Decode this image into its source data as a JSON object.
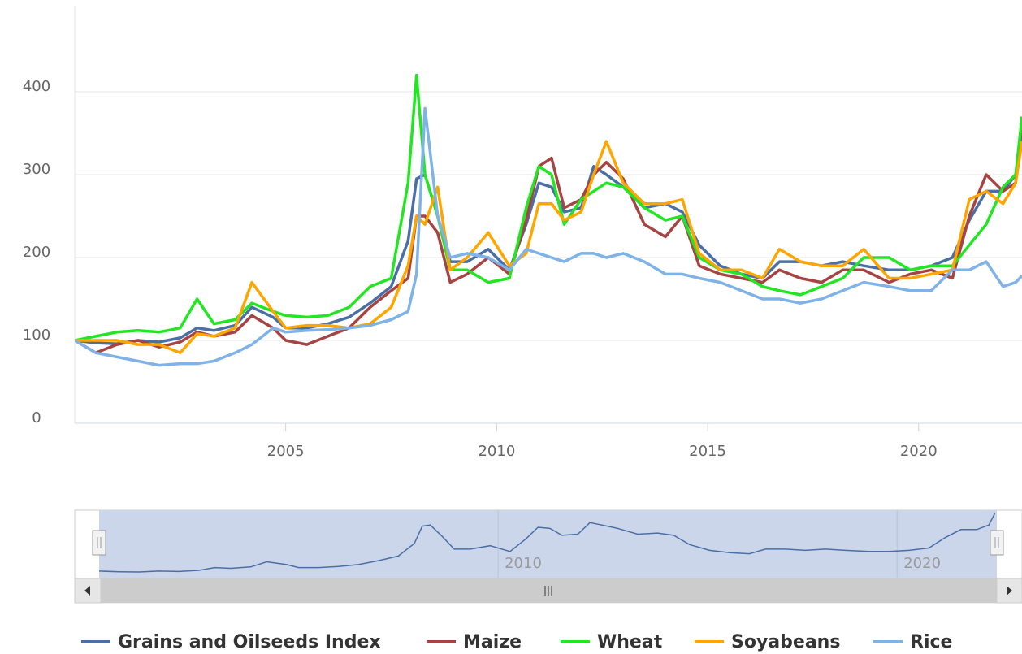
{
  "chart_data": {
    "type": "line",
    "x": [
      2000.0,
      2000.5,
      2001.0,
      2001.5,
      2002.0,
      2002.5,
      2002.9,
      2003.3,
      2003.8,
      2004.2,
      2004.7,
      2005.0,
      2005.5,
      2006.0,
      2006.5,
      2007.0,
      2007.5,
      2007.9,
      2008.1,
      2008.3,
      2008.6,
      2008.9,
      2009.3,
      2009.8,
      2010.3,
      2010.7,
      2011.0,
      2011.3,
      2011.6,
      2012.0,
      2012.3,
      2012.6,
      2013.0,
      2013.5,
      2014.0,
      2014.4,
      2014.8,
      2015.3,
      2015.8,
      2016.3,
      2016.7,
      2017.2,
      2017.7,
      2018.2,
      2018.7,
      2019.3,
      2019.8,
      2020.3,
      2020.8,
      2021.2,
      2021.6,
      2022.0,
      2022.3,
      2022.45
    ],
    "series": [
      {
        "name": "Grains and Oilseeds Index",
        "color": "#4a6fa5",
        "values": [
          100,
          97,
          96,
          100,
          98,
          103,
          115,
          112,
          118,
          140,
          128,
          115,
          115,
          120,
          128,
          145,
          165,
          220,
          295,
          300,
          250,
          195,
          195,
          210,
          185,
          240,
          290,
          285,
          255,
          260,
          310,
          300,
          285,
          260,
          265,
          255,
          215,
          190,
          180,
          175,
          195,
          195,
          190,
          195,
          190,
          185,
          185,
          190,
          200,
          245,
          280,
          280,
          300,
          350
        ]
      },
      {
        "name": "Maize",
        "color": "#a54442",
        "values": [
          100,
          85,
          95,
          100,
          92,
          98,
          110,
          105,
          110,
          130,
          115,
          100,
          95,
          105,
          115,
          140,
          160,
          175,
          250,
          250,
          230,
          170,
          180,
          200,
          180,
          245,
          310,
          320,
          260,
          270,
          300,
          315,
          295,
          240,
          225,
          250,
          190,
          180,
          175,
          170,
          185,
          175,
          170,
          185,
          185,
          170,
          180,
          185,
          175,
          250,
          300,
          280,
          290,
          370
        ]
      },
      {
        "name": "Wheat",
        "color": "#22e622",
        "values": [
          100,
          105,
          110,
          112,
          110,
          115,
          150,
          120,
          125,
          145,
          135,
          130,
          128,
          130,
          140,
          165,
          175,
          290,
          420,
          300,
          250,
          185,
          185,
          170,
          175,
          260,
          310,
          300,
          240,
          270,
          280,
          290,
          285,
          260,
          245,
          250,
          200,
          185,
          180,
          165,
          160,
          155,
          165,
          175,
          200,
          200,
          185,
          190,
          190,
          215,
          240,
          285,
          300,
          370
        ]
      },
      {
        "name": "Soyabeans",
        "color": "#ffa500",
        "values": [
          100,
          100,
          100,
          95,
          95,
          85,
          108,
          105,
          115,
          170,
          135,
          115,
          118,
          118,
          115,
          120,
          140,
          190,
          250,
          240,
          285,
          185,
          200,
          230,
          190,
          205,
          265,
          265,
          245,
          255,
          300,
          340,
          290,
          265,
          265,
          270,
          205,
          185,
          185,
          175,
          210,
          195,
          190,
          190,
          210,
          175,
          175,
          180,
          185,
          270,
          280,
          265,
          290,
          340
        ]
      },
      {
        "name": "Rice",
        "color": "#7fb2e6",
        "values": [
          100,
          85,
          80,
          75,
          70,
          72,
          72,
          75,
          85,
          95,
          115,
          110,
          112,
          113,
          115,
          118,
          125,
          135,
          180,
          380,
          250,
          200,
          205,
          200,
          185,
          210,
          205,
          200,
          195,
          205,
          205,
          200,
          205,
          195,
          180,
          180,
          175,
          170,
          160,
          150,
          150,
          145,
          150,
          160,
          170,
          165,
          160,
          160,
          185,
          185,
          195,
          165,
          170,
          178
        ]
      }
    ],
    "xlim": [
      2000.0,
      2022.45
    ],
    "xticks": [
      2005,
      2010,
      2015,
      2020
    ],
    "ylim": [
      0,
      500
    ],
    "yticks": [
      0,
      100,
      200,
      300,
      400
    ],
    "grid": true,
    "legend": "bottom",
    "navigator": {
      "xlim": [
        2000.0,
        2022.5
      ],
      "xticks": [
        2010,
        2020
      ]
    }
  }
}
